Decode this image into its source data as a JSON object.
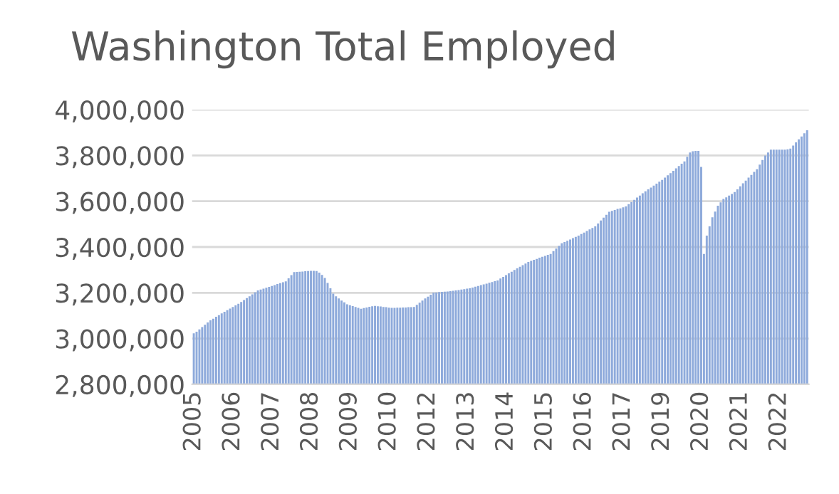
{
  "chart_data": {
    "type": "bar",
    "title": "Washington Total Employed",
    "categories": [
      "2005",
      null,
      null,
      null,
      null,
      null,
      null,
      null,
      null,
      null,
      null,
      null,
      null,
      null,
      "2006",
      null,
      null,
      null,
      null,
      null,
      null,
      null,
      null,
      null,
      null,
      null,
      null,
      null,
      "2007",
      null,
      null,
      null,
      null,
      null,
      null,
      null,
      null,
      null,
      null,
      null,
      null,
      null,
      "2008",
      null,
      null,
      null,
      null,
      null,
      null,
      null,
      null,
      null,
      null,
      null,
      null,
      null,
      "2009",
      null,
      null,
      null,
      null,
      null,
      null,
      null,
      null,
      null,
      null,
      null,
      null,
      null,
      "2010",
      null,
      null,
      null,
      null,
      null,
      null,
      null,
      null,
      null,
      null,
      null,
      null,
      null,
      "2012",
      null,
      null,
      null,
      null,
      null,
      null,
      null,
      null,
      null,
      null,
      null,
      null,
      null,
      "2013",
      null,
      null,
      null,
      null,
      null,
      null,
      null,
      null,
      null,
      null,
      null,
      null,
      null,
      "2014",
      null,
      null,
      null,
      null,
      null,
      null,
      null,
      null,
      null,
      null,
      null,
      null,
      null,
      "2015",
      null,
      null,
      null,
      null,
      null,
      null,
      null,
      null,
      null,
      null,
      null,
      null,
      null,
      "2016",
      null,
      null,
      null,
      null,
      null,
      null,
      null,
      null,
      null,
      null,
      null,
      null,
      null,
      "2017",
      null,
      null,
      null,
      null,
      null,
      null,
      null,
      null,
      null,
      null,
      null,
      null,
      null,
      "2019",
      null,
      null,
      null,
      null,
      null,
      null,
      null,
      null,
      null,
      null,
      null,
      null,
      null,
      "2020",
      null,
      null,
      null,
      null,
      null,
      null,
      null,
      null,
      null,
      null,
      null,
      null,
      null,
      "2021",
      null,
      null,
      null,
      null,
      null,
      null,
      null,
      null,
      null,
      null,
      null,
      null,
      null,
      "2022",
      null,
      null,
      null,
      null,
      null,
      null,
      null,
      null,
      null,
      null
    ],
    "values": [
      3023000,
      3030000,
      3040000,
      3050000,
      3060000,
      3070000,
      3080000,
      3087000,
      3095000,
      3102000,
      3110000,
      3117000,
      3124000,
      3131000,
      3138000,
      3145000,
      3152000,
      3160000,
      3168000,
      3177000,
      3185000,
      3193000,
      3202000,
      3210000,
      3214000,
      3218000,
      3222000,
      3226000,
      3230000,
      3234000,
      3238000,
      3242000,
      3246000,
      3250000,
      3263000,
      3277000,
      3290000,
      3291000,
      3292000,
      3293000,
      3294000,
      3295000,
      3296000,
      3296000,
      3295000,
      3288000,
      3278000,
      3265000,
      3243000,
      3220000,
      3196000,
      3185000,
      3175000,
      3166000,
      3158000,
      3150000,
      3146000,
      3142000,
      3138000,
      3134000,
      3130000,
      3133000,
      3136000,
      3139000,
      3141000,
      3143000,
      3141000,
      3140000,
      3138000,
      3137000,
      3135000,
      3134000,
      3134000,
      3135000,
      3135000,
      3136000,
      3136000,
      3137000,
      3137000,
      3138000,
      3147000,
      3157000,
      3166000,
      3175000,
      3183000,
      3192000,
      3200000,
      3201000,
      3203000,
      3204000,
      3205000,
      3206000,
      3207000,
      3209000,
      3210000,
      3212000,
      3214000,
      3216000,
      3218000,
      3220000,
      3223000,
      3227000,
      3230000,
      3234000,
      3237000,
      3240000,
      3244000,
      3247000,
      3251000,
      3254000,
      3262000,
      3269000,
      3277000,
      3285000,
      3292000,
      3300000,
      3307000,
      3314000,
      3321000,
      3328000,
      3335000,
      3339000,
      3344000,
      3348000,
      3353000,
      3357000,
      3361000,
      3366000,
      3370000,
      3382000,
      3393000,
      3405000,
      3416000,
      3422000,
      3427000,
      3433000,
      3439000,
      3444000,
      3450000,
      3457000,
      3463000,
      3470000,
      3477000,
      3483000,
      3490000,
      3503000,
      3516000,
      3528000,
      3541000,
      3554000,
      3558000,
      3562000,
      3566000,
      3569000,
      3573000,
      3577000,
      3587000,
      3596000,
      3606000,
      3616000,
      3625000,
      3635000,
      3643000,
      3652000,
      3660000,
      3668000,
      3677000,
      3685000,
      3693000,
      3703000,
      3713000,
      3723000,
      3733000,
      3744000,
      3754000,
      3764000,
      3774000,
      3794000,
      3813000,
      3818000,
      3820000,
      3820000,
      3750000,
      3370000,
      3450000,
      3490000,
      3530000,
      3555000,
      3580000,
      3595000,
      3610000,
      3617000,
      3625000,
      3632000,
      3640000,
      3652000,
      3665000,
      3678000,
      3690000,
      3703000,
      3715000,
      3728000,
      3740000,
      3760000,
      3780000,
      3800000,
      3813000,
      3825000,
      3825000,
      3825000,
      3825000,
      3825000,
      3825000,
      3827000,
      3830000,
      3843000,
      3857000,
      3870000,
      3883000,
      3897000,
      3910000
    ],
    "color": "#8eaadb",
    "ylim": [
      2800000,
      4000000
    ],
    "yticks": [
      {
        "value": 2800000,
        "label": "2,800,000"
      },
      {
        "value": 3000000,
        "label": "3,000,000"
      },
      {
        "value": 3200000,
        "label": "3,200,000"
      },
      {
        "value": 3400000,
        "label": "3,400,000"
      },
      {
        "value": 3600000,
        "label": "3,600,000"
      },
      {
        "value": 3800000,
        "label": "3,800,000"
      },
      {
        "value": 4000000,
        "label": "4,000,000"
      }
    ],
    "grid": "y"
  }
}
